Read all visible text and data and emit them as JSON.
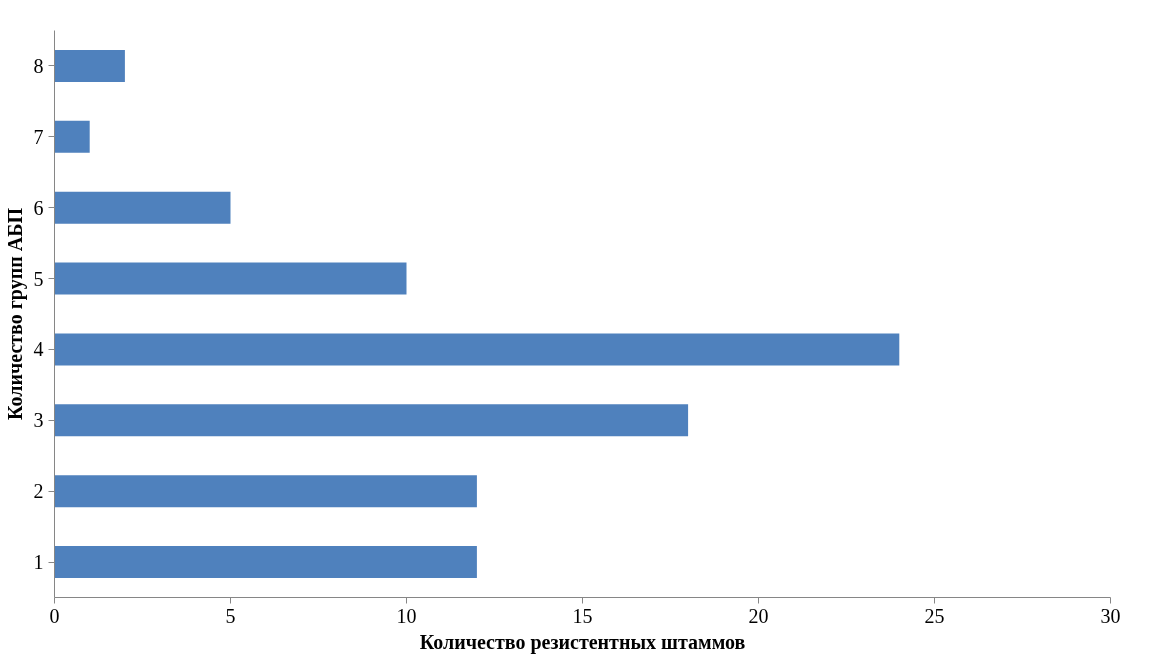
{
  "chart_data": {
    "type": "bar",
    "orientation": "horizontal",
    "xlabel": "Количество резистентных штаммов",
    "ylabel": "Количество групп АБП",
    "categories": [
      "8",
      "7",
      "6",
      "5",
      "4",
      "3",
      "2",
      "1"
    ],
    "values": [
      2,
      1,
      5,
      10,
      24,
      18,
      12,
      12
    ],
    "color": "#4f81bd",
    "xlim": [
      0,
      30
    ],
    "xticks": [
      0,
      5,
      10,
      15,
      20,
      25,
      30
    ],
    "grid": false
  }
}
